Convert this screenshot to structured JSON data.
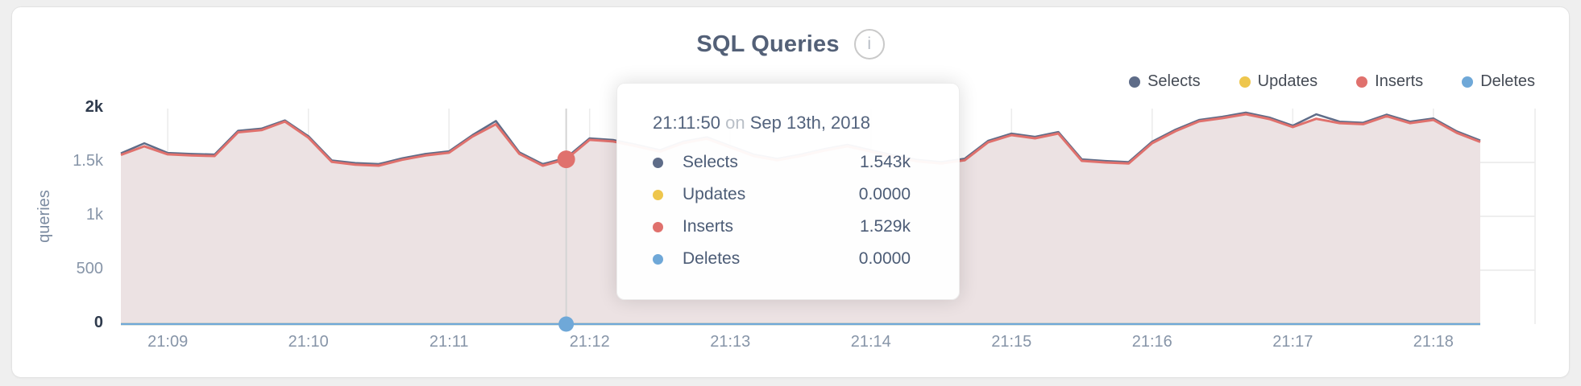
{
  "card": {
    "title": "SQL Queries",
    "info_icon": "i"
  },
  "legend": [
    {
      "label": "Selects",
      "color": "#5e6c88"
    },
    {
      "label": "Updates",
      "color": "#eec64d"
    },
    {
      "label": "Inserts",
      "color": "#e0716d"
    },
    {
      "label": "Deletes",
      "color": "#6fa8d8"
    }
  ],
  "tooltip": {
    "time": "21:11:50",
    "on": "on",
    "date": "Sep 13th, 2018",
    "rows": [
      {
        "label": "Selects",
        "value": "1.543k",
        "color": "#5e6c88"
      },
      {
        "label": "Updates",
        "value": "0.0000",
        "color": "#eec64d"
      },
      {
        "label": "Inserts",
        "value": "1.529k",
        "color": "#e0716d"
      },
      {
        "label": "Deletes",
        "value": "0.0000",
        "color": "#6fa8d8"
      }
    ]
  },
  "chart_data": {
    "type": "area",
    "title": "SQL Queries",
    "ylabel": "queries",
    "ylim": [
      0,
      2000
    ],
    "grid": true,
    "legend_position": "top-right",
    "start_time": "21:08:40",
    "interval_seconds": 10,
    "y_ticks": [
      {
        "label": "2k",
        "value": 2000,
        "emphasis": true
      },
      {
        "label": "1.5k",
        "value": 1500,
        "emphasis": false
      },
      {
        "label": "1k",
        "value": 1000,
        "emphasis": false
      },
      {
        "label": "500",
        "value": 500,
        "emphasis": false
      },
      {
        "label": "0",
        "value": 0,
        "emphasis": true
      }
    ],
    "x_ticks": [
      {
        "label": "21:09",
        "index": 2
      },
      {
        "label": "21:10",
        "index": 8
      },
      {
        "label": "21:11",
        "index": 14
      },
      {
        "label": "21:12",
        "index": 20
      },
      {
        "label": "21:13",
        "index": 26
      },
      {
        "label": "21:14",
        "index": 32
      },
      {
        "label": "21:15",
        "index": 38
      },
      {
        "label": "21:16",
        "index": 44
      },
      {
        "label": "21:17",
        "index": 50
      },
      {
        "label": "21:18",
        "index": 56
      }
    ],
    "series": [
      {
        "name": "Selects",
        "color": "#5e6c88",
        "values": [
          1584,
          1678,
          1589,
          1579,
          1574,
          1794,
          1814,
          1890,
          1744,
          1519,
          1494,
          1484,
          1539,
          1579,
          1604,
          1754,
          1885,
          1594,
          1484,
          1543,
          1724,
          1709,
          1664,
          1614,
          1694,
          1734,
          1654,
          1574,
          1534,
          1574,
          1624,
          1664,
          1614,
          1564,
          1524,
          1504,
          1534,
          1701,
          1768,
          1738,
          1783,
          1529,
          1514,
          1504,
          1693,
          1805,
          1895,
          1925,
          1963,
          1917,
          1842,
          1947,
          1879,
          1869,
          1944,
          1879,
          1909,
          1789,
          1704
        ]
      },
      {
        "name": "Updates",
        "color": "#eec64d",
        "values": [
          0,
          0,
          0,
          0,
          0,
          0,
          0,
          0,
          0,
          0,
          0,
          0,
          0,
          0,
          0,
          0,
          0,
          0,
          0,
          0,
          0,
          0,
          0,
          0,
          0,
          0,
          0,
          0,
          0,
          0,
          0,
          0,
          0,
          0,
          0,
          0,
          0,
          0,
          0,
          0,
          0,
          0,
          0,
          0,
          0,
          0,
          0,
          0,
          0,
          0,
          0,
          0,
          0,
          0,
          0,
          0,
          0,
          0,
          0
        ]
      },
      {
        "name": "Inserts",
        "color": "#e0716d",
        "fill": "#ece2e3",
        "values": [
          1570,
          1650,
          1575,
          1565,
          1560,
          1780,
          1800,
          1880,
          1730,
          1505,
          1480,
          1470,
          1525,
          1565,
          1590,
          1740,
          1855,
          1580,
          1470,
          1529,
          1710,
          1695,
          1650,
          1600,
          1680,
          1720,
          1640,
          1560,
          1520,
          1560,
          1610,
          1650,
          1600,
          1550,
          1510,
          1490,
          1520,
          1687,
          1754,
          1724,
          1769,
          1515,
          1500,
          1490,
          1679,
          1791,
          1881,
          1911,
          1948,
          1903,
          1828,
          1905,
          1865,
          1855,
          1930,
          1865,
          1895,
          1775,
          1690
        ]
      },
      {
        "name": "Deletes",
        "color": "#6fa8d8",
        "values": [
          0,
          0,
          0,
          0,
          0,
          0,
          0,
          0,
          0,
          0,
          0,
          0,
          0,
          0,
          0,
          0,
          0,
          0,
          0,
          0,
          0,
          0,
          0,
          0,
          0,
          0,
          0,
          0,
          0,
          0,
          0,
          0,
          0,
          0,
          0,
          0,
          0,
          0,
          0,
          0,
          0,
          0,
          0,
          0,
          0,
          0,
          0,
          0,
          0,
          0,
          0,
          0,
          0,
          0,
          0,
          0,
          0,
          0,
          0
        ]
      }
    ],
    "hover": {
      "index": 19,
      "time": "21:11:50",
      "date": "Sep 13th, 2018",
      "values": {
        "Selects": "1.543k",
        "Updates": "0.0000",
        "Inserts": "1.529k",
        "Deletes": "0.0000"
      }
    }
  }
}
